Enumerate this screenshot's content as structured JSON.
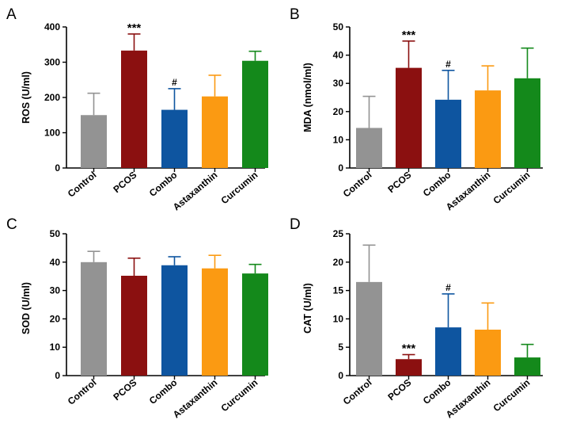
{
  "figure": {
    "categories": [
      "Control",
      "PCOS",
      "Combo",
      "Astaxanthin",
      "Curcumin"
    ],
    "colors": [
      "#939393",
      "#8b1010",
      "#0e55a0",
      "#fb9a12",
      "#14891b"
    ]
  },
  "chart_data": [
    {
      "panel": "A",
      "type": "bar",
      "ylabel": "ROS (U/ml)",
      "ylim": [
        0,
        400
      ],
      "yticks": [
        0,
        100,
        200,
        300,
        400
      ],
      "categories": [
        "Control",
        "PCOS",
        "Combo",
        "Astaxanthin",
        "Curcumin"
      ],
      "values": [
        150,
        333,
        165,
        203,
        304
      ],
      "errors": [
        62,
        47,
        60,
        60,
        27
      ],
      "annotations": [
        "",
        "***",
        "#",
        "",
        ""
      ]
    },
    {
      "panel": "B",
      "type": "bar",
      "ylabel": "MDA (nmol/ml)",
      "ylim": [
        0,
        50
      ],
      "yticks": [
        0,
        10,
        20,
        30,
        40,
        50
      ],
      "categories": [
        "Control",
        "PCOS",
        "Combo",
        "Astaxanthin",
        "Curcumin"
      ],
      "values": [
        14.2,
        35.5,
        24.2,
        27.5,
        31.8
      ],
      "errors": [
        11.2,
        9.5,
        10.4,
        8.7,
        10.7
      ],
      "annotations": [
        "",
        "***",
        "#",
        "",
        ""
      ]
    },
    {
      "panel": "C",
      "type": "bar",
      "ylabel": "SOD (U/ml)",
      "ylim": [
        0,
        50
      ],
      "yticks": [
        0,
        10,
        20,
        30,
        40,
        50
      ],
      "categories": [
        "Control",
        "PCOS",
        "Combo",
        "Astaxanthin",
        "Curcumin"
      ],
      "values": [
        40,
        35.2,
        38.9,
        37.8,
        36
      ],
      "errors": [
        3.8,
        6.2,
        3,
        4.6,
        3.2
      ],
      "annotations": [
        "",
        "",
        "",
        "",
        ""
      ]
    },
    {
      "panel": "D",
      "type": "bar",
      "ylabel": "CAT (U/ml)",
      "ylim": [
        0,
        25
      ],
      "yticks": [
        0,
        5,
        10,
        15,
        20,
        25
      ],
      "categories": [
        "Control",
        "PCOS",
        "Combo",
        "Astaxanthin",
        "Curcumin"
      ],
      "values": [
        16.5,
        2.9,
        8.5,
        8.1,
        3.2
      ],
      "errors": [
        6.5,
        0.8,
        5.9,
        4.7,
        2.3
      ],
      "annotations": [
        "",
        "***",
        "#",
        "",
        ""
      ]
    }
  ]
}
